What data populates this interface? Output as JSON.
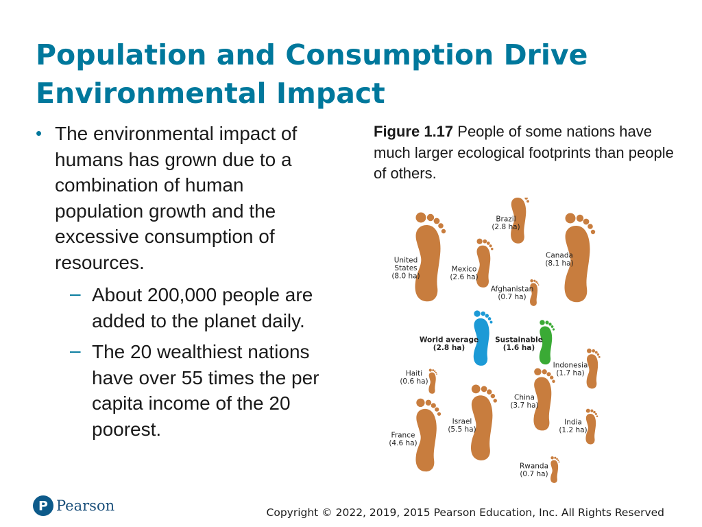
{
  "title": {
    "line1": "Population and Consumption Drive",
    "line2": "Environmental Impact"
  },
  "bullets": {
    "main": {
      "marker": "•",
      "lines": [
        "The environmental impact of",
        "humans has grown due to a",
        "combination of human",
        "population growth and the",
        "excessive consumption of",
        "resources."
      ]
    },
    "sub": [
      {
        "marker": "–",
        "lines": [
          "About 200,000 people are",
          "added to the planet daily."
        ]
      },
      {
        "marker": "–",
        "lines": [
          "The 20 wealthiest nations",
          "have over 55 times the per",
          "capita income of the 20",
          "poorest."
        ]
      }
    ]
  },
  "caption": {
    "figure_number": "Figure 1.17",
    "text": " People of some nations have much larger ecological footprints than people of others."
  },
  "figure": {
    "colors": {
      "nation": "#c87d3e",
      "world_average": "#1c9ad6",
      "sustainable": "#3aaa35"
    },
    "footprints": [
      {
        "name": "Brazil",
        "value": "(2.8 ha)",
        "kind": "nation"
      },
      {
        "name": "Canada",
        "value": "(8.1 ha)",
        "kind": "nation"
      },
      {
        "name": "United States",
        "value": "(8.0 ha)",
        "kind": "nation"
      },
      {
        "name": "Mexico",
        "value": "(2.6 ha)",
        "kind": "nation"
      },
      {
        "name": "Afghanistan",
        "value": "(0.7 ha)",
        "kind": "nation"
      },
      {
        "name": "World average",
        "value": "(2.8 ha)",
        "kind": "world_average"
      },
      {
        "name": "Sustainable",
        "value": "(1.6 ha)",
        "kind": "sustainable"
      },
      {
        "name": "Indonesia",
        "value": "(1.7 ha)",
        "kind": "nation"
      },
      {
        "name": "Haiti",
        "value": "(0.6 ha)",
        "kind": "nation"
      },
      {
        "name": "China",
        "value": "(3.7 ha)",
        "kind": "nation"
      },
      {
        "name": "Israel",
        "value": "(5.5 ha)",
        "kind": "nation"
      },
      {
        "name": "France",
        "value": "(4.6 ha)",
        "kind": "nation"
      },
      {
        "name": "India",
        "value": "(1.2 ha)",
        "kind": "nation"
      },
      {
        "name": "Rwanda",
        "value": "(0.7 ha)",
        "kind": "nation"
      }
    ]
  },
  "footer": {
    "logo_text": "Pearson",
    "logo_letter": "P",
    "copyright": "Copyright © 2022, 2019, 2015 Pearson Education, Inc. All Rights Reserved"
  }
}
